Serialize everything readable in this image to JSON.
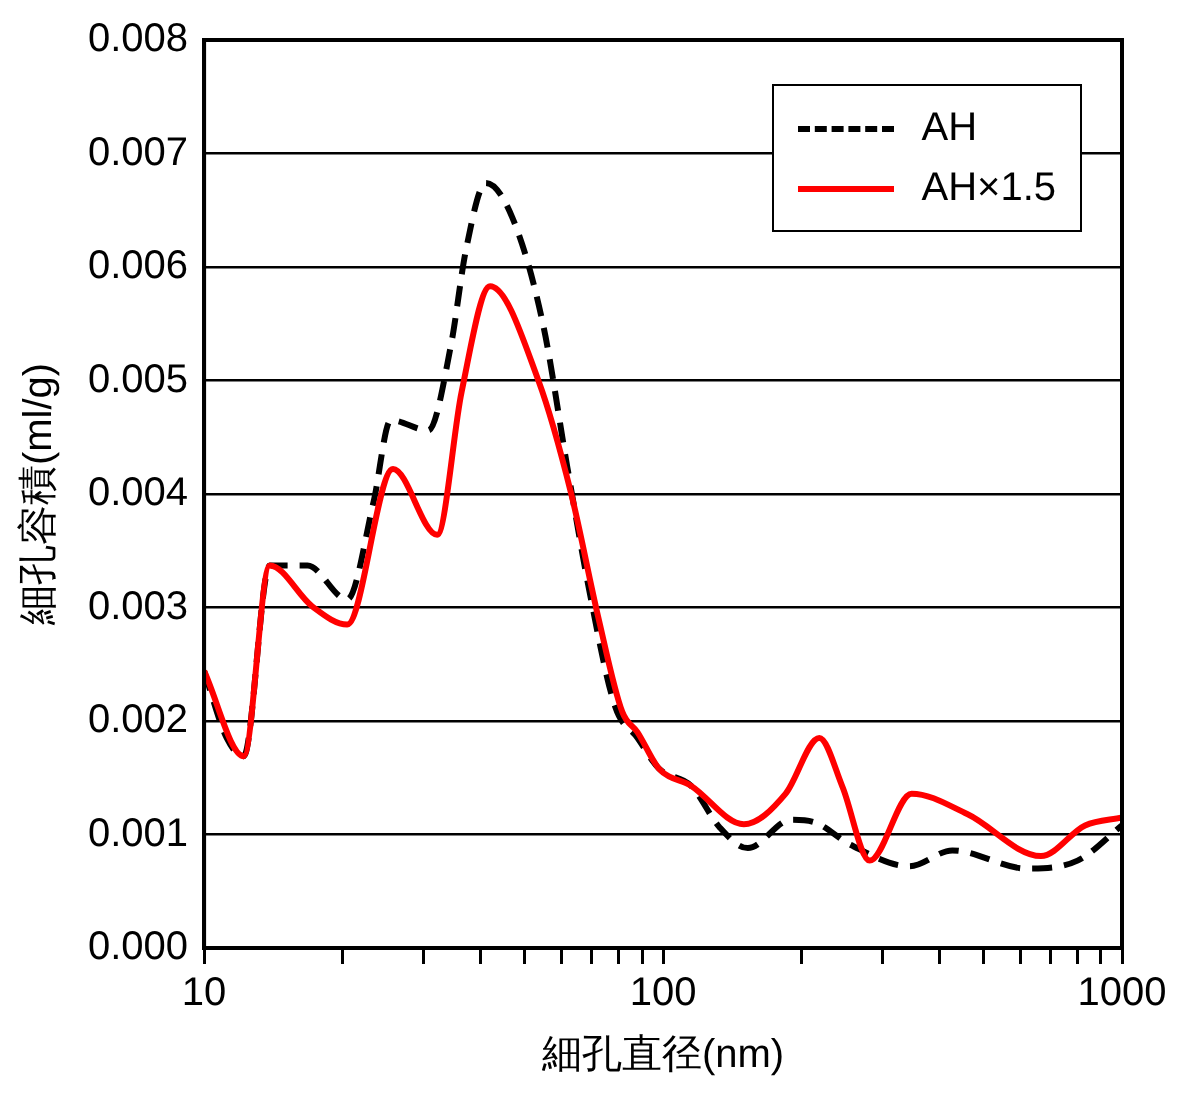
{
  "chart_data": {
    "type": "line",
    "xlabel": "細孔直径(nm)",
    "ylabel": "細孔容積(ml/g)",
    "log": "x",
    "xlim": [
      10,
      1000
    ],
    "xticks": [
      10,
      {
        "value": 20,
        "label": null
      },
      {
        "value": 30,
        "label": null
      },
      {
        "value": 40,
        "label": null
      },
      {
        "value": 50,
        "label": null
      },
      {
        "value": 60,
        "label": null
      },
      {
        "value": 70,
        "label": null
      },
      {
        "value": 80,
        "label": null
      },
      {
        "value": 90,
        "label": null
      },
      100,
      {
        "value": 200,
        "label": null
      },
      {
        "value": 300,
        "label": null
      },
      {
        "value": 400,
        "label": null
      },
      {
        "value": 500,
        "label": null
      },
      {
        "value": 600,
        "label": null
      },
      {
        "value": 700,
        "label": null
      },
      {
        "value": 800,
        "label": null
      },
      {
        "value": 900,
        "label": null
      },
      1000
    ],
    "ylim": [
      0,
      0.008
    ],
    "yticks": [
      {
        "value": 0,
        "label": "0.000"
      },
      0.001,
      0.002,
      0.003,
      0.004,
      0.005,
      0.006,
      0.007,
      0.008
    ],
    "grid": "y",
    "legend": "top right",
    "marker": "none",
    "series": [
      {
        "name": "AH",
        "color": "#000000",
        "line_style": "dashed",
        "x": [
          10,
          11.2,
          12.2,
          13.9,
          16.8,
          20.5,
          23.4,
          25.5,
          30.8,
          34.5,
          37.2,
          41.1,
          46.9,
          54.8,
          61.9,
          69,
          78.6,
          88,
          98,
          115,
          133,
          153,
          190,
          213,
          256,
          344,
          427,
          620,
          800,
          1000
        ],
        "values": [
          0.00244,
          0.00185,
          0.00169,
          0.00337,
          0.00337,
          0.00307,
          0.00393,
          0.00465,
          0.00456,
          0.00531,
          0.00615,
          0.00674,
          0.00644,
          0.00549,
          0.00423,
          0.00316,
          0.00213,
          0.00185,
          0.00158,
          0.00143,
          0.00106,
          0.00088,
          0.00113,
          0.00111,
          0.00091,
          0.00072,
          0.00086,
          0.0007,
          0.00077,
          0.00108
        ]
      },
      {
        "name": "AH×1.5",
        "color": "#ff0000",
        "line_style": "solid",
        "x": [
          10,
          12.2,
          13.9,
          17.2,
          20.5,
          25.8,
          32.2,
          36.4,
          42,
          53.5,
          63.1,
          72.2,
          81.5,
          88,
          98,
          115,
          150,
          185,
          219,
          246,
          282,
          348,
          460,
          666,
          831,
          1000
        ],
        "values": [
          0.00244,
          0.00169,
          0.00337,
          0.00301,
          0.00285,
          0.00422,
          0.00364,
          0.0049,
          0.00583,
          0.005,
          0.004,
          0.00292,
          0.00208,
          0.0019,
          0.00158,
          0.00143,
          0.00109,
          0.00136,
          0.00185,
          0.00142,
          0.00077,
          0.00136,
          0.00118,
          0.00081,
          0.00108,
          0.00115
        ]
      }
    ]
  }
}
